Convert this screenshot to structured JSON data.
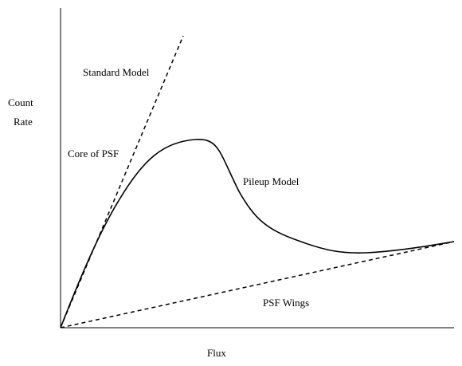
{
  "axes": {
    "y_label": [
      "Count",
      "Rate"
    ],
    "x_label": "Flux"
  },
  "labels": {
    "standard_model": "Standard Model",
    "core_of_psf": "Core of PSF",
    "pileup_model": "Pileup Model",
    "psf_wings": "PSF Wings"
  }
}
